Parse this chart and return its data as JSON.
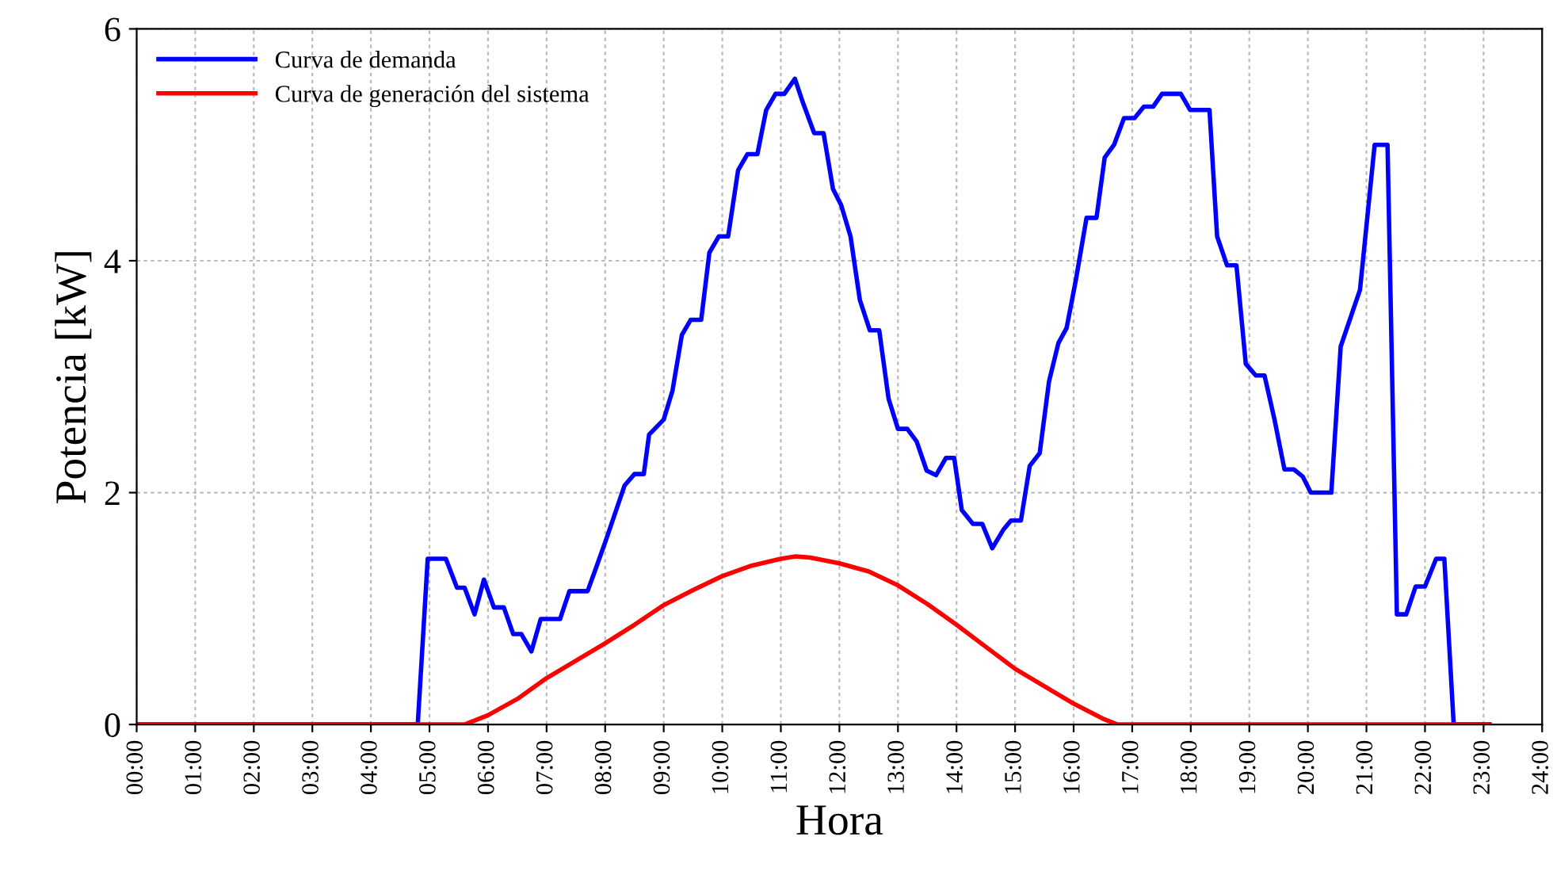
{
  "chart_data": {
    "type": "line",
    "xlabel": "Hora",
    "ylabel": "Potencia [kW]",
    "xlim": [
      0,
      24
    ],
    "xticks": [
      {
        "value": 0,
        "label": "00:00"
      },
      {
        "value": 1,
        "label": "01:00"
      },
      {
        "value": 2,
        "label": "02:00"
      },
      {
        "value": 3,
        "label": "03:00"
      },
      {
        "value": 4,
        "label": "04:00"
      },
      {
        "value": 5,
        "label": "05:00"
      },
      {
        "value": 6,
        "label": "06:00"
      },
      {
        "value": 7,
        "label": "07:00"
      },
      {
        "value": 8,
        "label": "08:00"
      },
      {
        "value": 9,
        "label": "09:00"
      },
      {
        "value": 10,
        "label": "10:00"
      },
      {
        "value": 11,
        "label": "11:00"
      },
      {
        "value": 12,
        "label": "12:00"
      },
      {
        "value": 13,
        "label": "13:00"
      },
      {
        "value": 14,
        "label": "14:00"
      },
      {
        "value": 15,
        "label": "15:00"
      },
      {
        "value": 16,
        "label": "16:00"
      },
      {
        "value": 17,
        "label": "17:00"
      },
      {
        "value": 18,
        "label": "18:00"
      },
      {
        "value": 19,
        "label": "19:00"
      },
      {
        "value": 20,
        "label": "20:00"
      },
      {
        "value": 21,
        "label": "21:00"
      },
      {
        "value": 22,
        "label": "22:00"
      },
      {
        "value": 23,
        "label": "23:00"
      },
      {
        "value": 24,
        "label": "24:00"
      }
    ],
    "ylim": [
      0,
      6
    ],
    "yticks": [
      0,
      2,
      4,
      6
    ],
    "grid": true,
    "legend": "top left",
    "marker": "none",
    "line_style": "solid",
    "series": [
      {
        "name": "Curva de demanda",
        "color": "#0000ff",
        "x": [
          0,
          4.8,
          4.97,
          5.28,
          5.47,
          5.6,
          5.77,
          5.93,
          6.1,
          6.27,
          6.43,
          6.57,
          6.74,
          6.9,
          7.23,
          7.39,
          7.7,
          7.83,
          8.02,
          8.33,
          8.5,
          8.66,
          8.75,
          9.0,
          9.15,
          9.31,
          9.46,
          9.64,
          9.78,
          9.94,
          10.1,
          10.27,
          10.43,
          10.6,
          10.75,
          10.91,
          11.06,
          11.24,
          11.38,
          11.57,
          11.73,
          11.89,
          12.03,
          12.19,
          12.35,
          12.52,
          12.68,
          12.84,
          13.0,
          13.16,
          13.32,
          13.49,
          13.65,
          13.82,
          13.96,
          14.09,
          14.28,
          14.44,
          14.61,
          14.8,
          14.93,
          15.1,
          15.25,
          15.42,
          15.58,
          15.74,
          15.88,
          16.04,
          16.22,
          16.39,
          16.53,
          16.69,
          16.86,
          17.04,
          17.2,
          17.36,
          17.51,
          17.83,
          17.99,
          18.32,
          18.45,
          18.62,
          18.78,
          18.94,
          19.11,
          19.26,
          19.43,
          19.6,
          19.76,
          19.91,
          20.05,
          20.4,
          20.56,
          20.89,
          21.14,
          21.36,
          21.52,
          21.68,
          21.84,
          22.0,
          22.19,
          22.33,
          22.49,
          23.1
        ],
        "values": [
          0,
          0,
          1.43,
          1.43,
          1.18,
          1.18,
          0.95,
          1.25,
          1.01,
          1.01,
          0.78,
          0.78,
          0.63,
          0.91,
          0.91,
          1.15,
          1.15,
          1.33,
          1.6,
          2.06,
          2.16,
          2.16,
          2.5,
          2.63,
          2.88,
          3.36,
          3.49,
          3.49,
          4.07,
          4.21,
          4.21,
          4.78,
          4.92,
          4.92,
          5.3,
          5.44,
          5.44,
          5.57,
          5.36,
          5.1,
          5.1,
          4.62,
          4.48,
          4.21,
          3.66,
          3.4,
          3.4,
          2.81,
          2.55,
          2.55,
          2.44,
          2.19,
          2.15,
          2.3,
          2.3,
          1.85,
          1.73,
          1.73,
          1.52,
          1.68,
          1.76,
          1.76,
          2.23,
          2.34,
          2.96,
          3.29,
          3.42,
          3.84,
          4.37,
          4.37,
          4.89,
          5.0,
          5.23,
          5.23,
          5.33,
          5.33,
          5.44,
          5.44,
          5.3,
          5.3,
          4.21,
          3.96,
          3.96,
          3.11,
          3.01,
          3.01,
          2.63,
          2.2,
          2.2,
          2.14,
          2.0,
          2.0,
          3.26,
          3.75,
          5.0,
          5.0,
          0.95,
          0.95,
          1.19,
          1.19,
          1.43,
          1.43,
          0,
          0
        ]
      },
      {
        "name": "Curva de generación del sistema",
        "color": "#ff0000",
        "x": [
          0,
          5.6,
          6.0,
          6.5,
          7.0,
          7.5,
          8.0,
          8.5,
          9.0,
          9.5,
          10.0,
          10.5,
          11.0,
          11.25,
          11.5,
          12.0,
          12.5,
          13.0,
          13.5,
          14.0,
          14.5,
          15.0,
          15.5,
          16.0,
          16.5,
          16.75,
          23.1
        ],
        "values": [
          0,
          0,
          0.08,
          0.22,
          0.4,
          0.55,
          0.7,
          0.86,
          1.03,
          1.16,
          1.28,
          1.37,
          1.43,
          1.45,
          1.44,
          1.39,
          1.32,
          1.2,
          1.04,
          0.86,
          0.67,
          0.48,
          0.33,
          0.18,
          0.05,
          0,
          0
        ]
      }
    ]
  }
}
